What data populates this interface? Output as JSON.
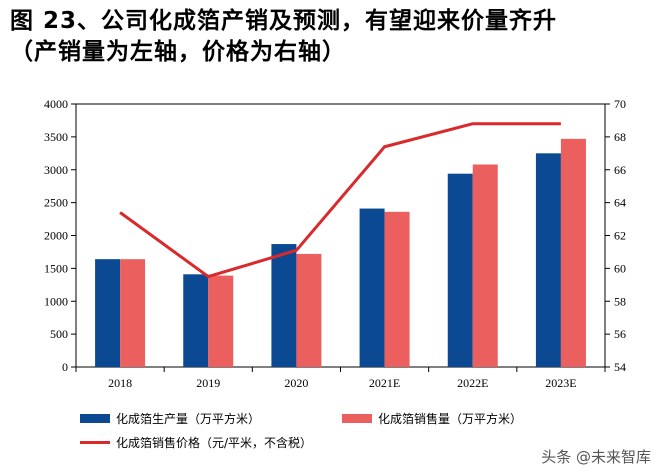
{
  "title": {
    "line1": "图 23、公司化成箔产销及预测，有望迎来价量齐升",
    "line2": "（产销量为左轴，价格为右轴）"
  },
  "chart_data": {
    "type": "bar",
    "categories": [
      "2018",
      "2019",
      "2020",
      "2021E",
      "2022E",
      "2023E"
    ],
    "series": [
      {
        "name": "化成箔生产量（万平方米）",
        "kind": "bar",
        "axis": "left",
        "color": "#0B4A93",
        "values": [
          1640,
          1410,
          1870,
          2410,
          2940,
          3250
        ]
      },
      {
        "name": "化成箔销售量（万平方米）",
        "kind": "bar",
        "axis": "left",
        "color": "#EB5F5F",
        "values": [
          1640,
          1390,
          1720,
          2360,
          3080,
          3470
        ]
      },
      {
        "name": "化成箔销售价格（元/平米，不含税）",
        "kind": "line",
        "axis": "right",
        "color": "#D9292B",
        "values": [
          63.4,
          59.5,
          61.1,
          67.4,
          68.8,
          68.8
        ]
      }
    ],
    "y_left": {
      "min": 0,
      "max": 4000,
      "step": 500,
      "ticks": [
        "0",
        "500",
        "1000",
        "1500",
        "2000",
        "2500",
        "3000",
        "3500",
        "4000"
      ]
    },
    "y_right": {
      "min": 54,
      "max": 70,
      "step": 2,
      "ticks": [
        "54",
        "56",
        "58",
        "60",
        "62",
        "64",
        "66",
        "68",
        "70"
      ]
    },
    "grid": false,
    "legend_position": "bottom"
  },
  "watermark": "头条 @未来智库"
}
